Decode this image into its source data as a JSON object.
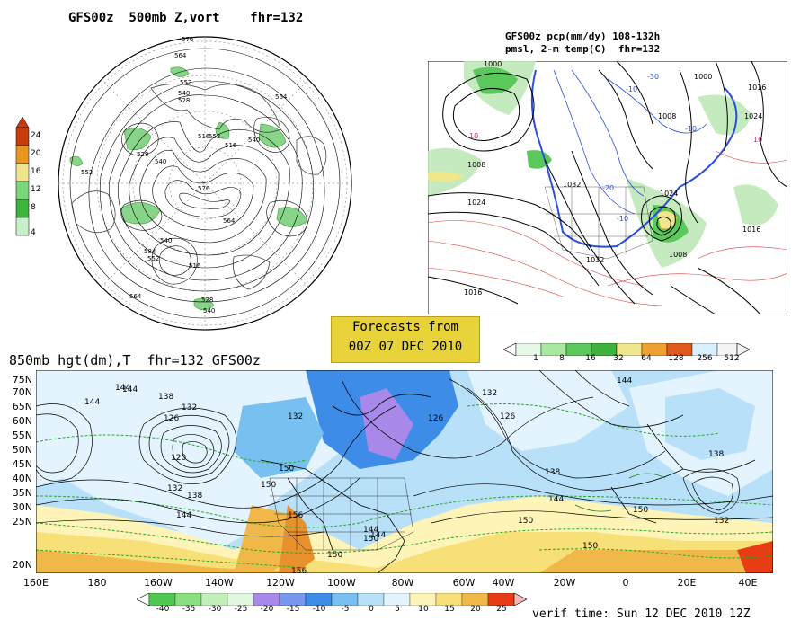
{
  "top_left": {
    "title": "GFS00z  500mb Z,vort    fhr=132",
    "contour_labels": [
      "576",
      "564",
      "552",
      "540",
      "528",
      "516",
      "552",
      "540",
      "564",
      "516",
      "528",
      "540",
      "552",
      "564",
      "576",
      "584",
      "516",
      "540",
      "552",
      "564",
      "528",
      "540"
    ],
    "colorbar": {
      "ticks": [
        "24",
        "20",
        "16",
        "12",
        "8",
        "4"
      ],
      "colors": [
        "#c83c0c",
        "#e89622",
        "#f0e48c",
        "#78d878",
        "#3cb43c",
        "#c8f0c8"
      ]
    }
  },
  "top_right": {
    "title_line1": "GFS00z pcp(mm/dy) 108-132h",
    "title_line2": "pmsl, 2-m temp(C)  fhr=132",
    "contour_labels": [
      "1000",
      "1016",
      "1008",
      "1024",
      "1032",
      "1016",
      "1024",
      "1008",
      "1000",
      "1024",
      "-10",
      "10",
      "-20",
      "-10",
      "10",
      "-30",
      "-10",
      "1008",
      "1016",
      "1032"
    ],
    "colorbar": {
      "ticks": [
        "1",
        "8",
        "16",
        "32",
        "64",
        "128",
        "256",
        "512"
      ],
      "colors": [
        "#e6f8e6",
        "#a8e8a0",
        "#5ac85a",
        "#f0e68c",
        "#f0a030",
        "#e05a1e",
        "#d8f0ff",
        "#f4f4f4"
      ]
    }
  },
  "forecast_box": {
    "line1": "Forecasts from",
    "line2": "00Z 07 DEC 2010"
  },
  "bottom": {
    "title": "850mb hgt(dm),T  fhr=132 GFS00z",
    "lat_labels": [
      "75N",
      "70N",
      "65N",
      "60N",
      "55N",
      "50N",
      "45N",
      "40N",
      "35N",
      "30N",
      "25N",
      "20N"
    ],
    "lon_labels": [
      "160E",
      "180",
      "160W",
      "140W",
      "120W",
      "100W",
      "80W",
      "60W",
      "40W",
      "20W",
      "0",
      "20E",
      "40E"
    ],
    "contour_labels": [
      "144",
      "138",
      "132",
      "126",
      "120",
      "132",
      "138",
      "144",
      "150",
      "144",
      "144",
      "132",
      "126",
      "150",
      "156",
      "150",
      "132",
      "138",
      "144",
      "150",
      "156",
      "150",
      "144",
      "150",
      "132",
      "138",
      "144",
      "150",
      "126",
      "144"
    ],
    "colorbar": {
      "ticks": [
        "-40",
        "-35",
        "-30",
        "-25",
        "-20",
        "-15",
        "-10",
        "-5",
        "0",
        "5",
        "10",
        "15",
        "20",
        "25"
      ],
      "colors": [
        "#50c850",
        "#88e080",
        "#c0f0b8",
        "#a888e8",
        "#7898f0",
        "#3c8ce8",
        "#78c0f0",
        "#b8e0f8",
        "#e4f4ff",
        "#fff4b8",
        "#f8e078",
        "#f0b848",
        "#e8902c",
        "#e83c14"
      ]
    },
    "verif": "verif time: Sun 12 DEC 2010 12Z"
  }
}
